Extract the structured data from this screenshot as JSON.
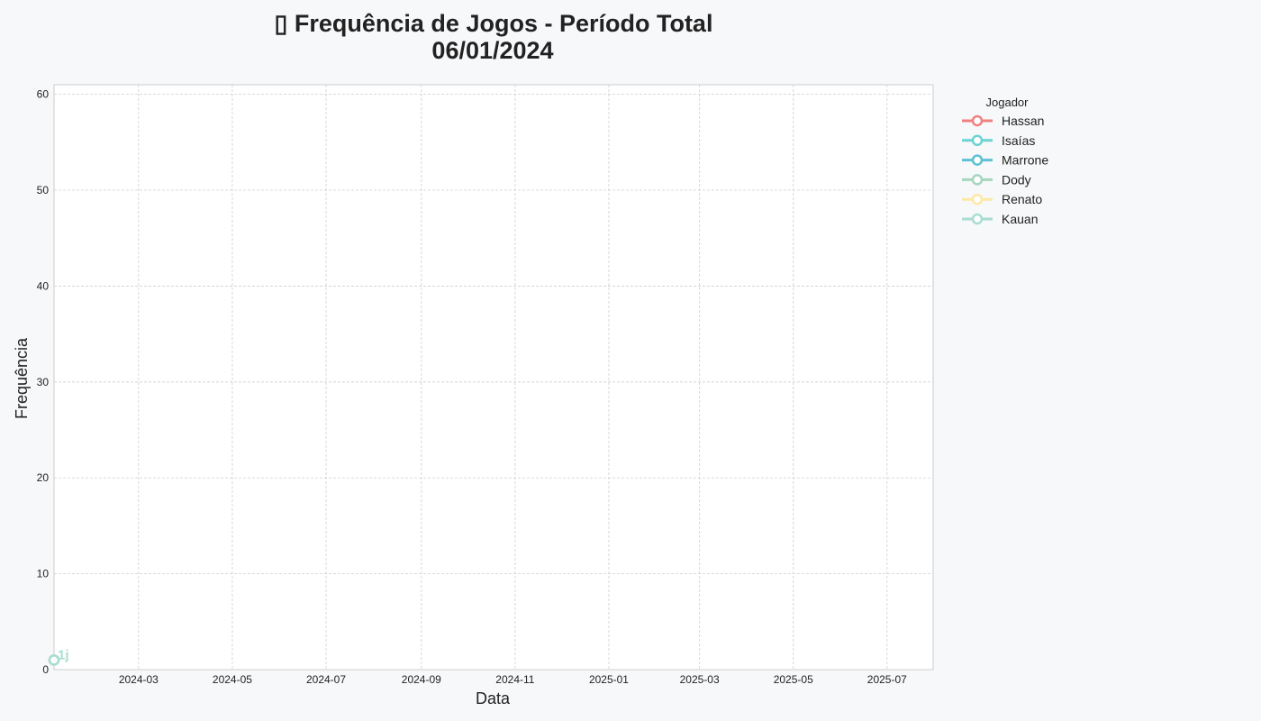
{
  "chart_data": {
    "type": "line",
    "title_line1": "▯ Frequência de Jogos - Período Total",
    "title_line2": "06/01/2024",
    "xlabel": "Data",
    "ylabel": "Frequência",
    "x_type": "date",
    "xlim": [
      "2024-01-06",
      "2025-07-31"
    ],
    "ylim": [
      0,
      61
    ],
    "x_ticks": [
      "2024-03",
      "2024-05",
      "2024-07",
      "2024-09",
      "2024-11",
      "2025-01",
      "2025-03",
      "2025-05",
      "2025-07"
    ],
    "y_ticks": [
      0,
      10,
      20,
      30,
      40,
      50,
      60
    ],
    "grid": true,
    "legend_title": "Jogador",
    "legend_position": "outside right, top",
    "series": [
      {
        "name": "Hassan",
        "color": "#f08080",
        "points": [
          {
            "x": "2024-01-06",
            "y": 1
          }
        ]
      },
      {
        "name": "Isaías",
        "color": "#6dd3d1",
        "points": [
          {
            "x": "2024-01-06",
            "y": 1
          }
        ]
      },
      {
        "name": "Marrone",
        "color": "#5fc1d3",
        "points": [
          {
            "x": "2024-01-06",
            "y": 1
          }
        ]
      },
      {
        "name": "Dody",
        "color": "#a5d6be",
        "points": [
          {
            "x": "2024-01-06",
            "y": 1
          }
        ]
      },
      {
        "name": "Renato",
        "color": "#fce9a6",
        "points": [
          {
            "x": "2024-01-06",
            "y": 1
          }
        ]
      },
      {
        "name": "Kauan",
        "color": "#a8ddd0",
        "points": [
          {
            "x": "2024-01-06",
            "y": 1
          }
        ]
      }
    ],
    "annotations": [
      {
        "text": "1j",
        "x": "2024-01-06",
        "y": 1,
        "color": "#a8ddd0"
      }
    ]
  }
}
